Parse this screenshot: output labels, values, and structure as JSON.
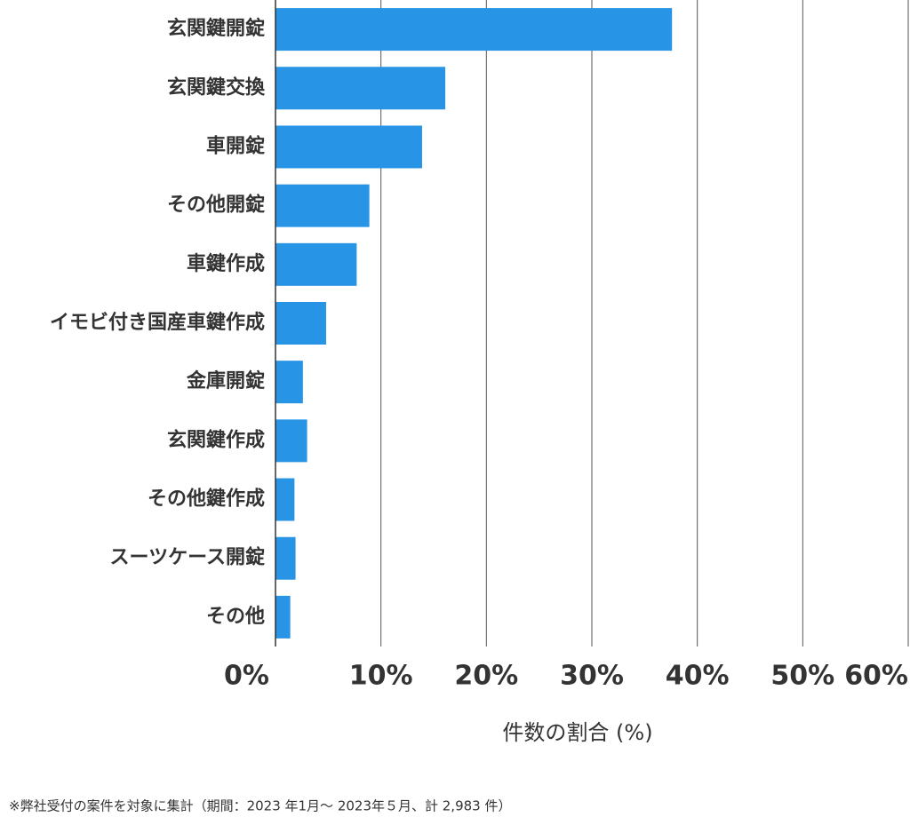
{
  "chart_data": {
    "type": "bar",
    "orientation": "horizontal",
    "categories": [
      "玄関鍵開錠",
      "玄関鍵交換",
      "車開錠",
      "その他開錠",
      "車鍵作成",
      "イモビ付き国産車鍵作成",
      "金庫開錠",
      "玄関鍵作成",
      "その他鍵作成",
      "スーツケース開錠",
      "その他"
    ],
    "values": [
      37.6,
      16.1,
      13.9,
      8.9,
      7.7,
      4.8,
      2.6,
      3.0,
      1.8,
      1.9,
      1.4
    ],
    "color": "#2794e6",
    "xlim": [
      0,
      60
    ],
    "xticks": [
      {
        "value": 0,
        "label": "0%"
      },
      {
        "value": 10,
        "label": "10%"
      },
      {
        "value": 20,
        "label": "20%"
      },
      {
        "value": 30,
        "label": "30%"
      },
      {
        "value": 40,
        "label": "40%"
      },
      {
        "value": 50,
        "label": "50%"
      },
      {
        "value": 60,
        "label": "60%"
      }
    ],
    "xlabel": "件数の割合 (%)",
    "grid": true,
    "footnote": "※弊社受付の案件を対象に集計（期間：2023 年1月～ 2023年５月、計 2,983 件）"
  }
}
